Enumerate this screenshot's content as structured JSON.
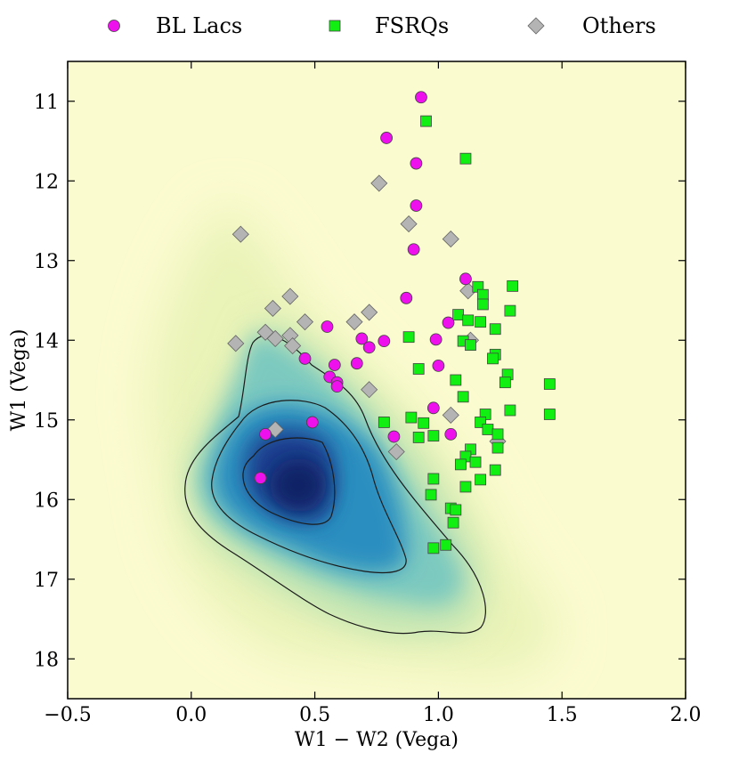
{
  "chart_data": {
    "type": "scatter",
    "xlabel": "W1 − W2 (Vega)",
    "ylabel": "W1 (Vega)",
    "xlim": [
      -0.5,
      2.0
    ],
    "ylim": [
      18.5,
      10.5
    ],
    "y_inverted": true,
    "grid": false,
    "legend_position": "top",
    "xticks": [
      {
        "value": -0.5,
        "label": "−0.5"
      },
      {
        "value": 0.0,
        "label": "0.0"
      },
      {
        "value": 0.5,
        "label": "0.5"
      },
      {
        "value": 1.0,
        "label": "1.0"
      },
      {
        "value": 1.5,
        "label": "1.5"
      },
      {
        "value": 2.0,
        "label": "2.0"
      }
    ],
    "yticks": [
      {
        "value": 11,
        "label": "11"
      },
      {
        "value": 12,
        "label": "12"
      },
      {
        "value": 13,
        "label": "13"
      },
      {
        "value": 14,
        "label": "14"
      },
      {
        "value": 15,
        "label": "15"
      },
      {
        "value": 16,
        "label": "16"
      },
      {
        "value": 17,
        "label": "17"
      },
      {
        "value": 18,
        "label": "18"
      }
    ],
    "background_density": {
      "colormap": "YlGnBu",
      "peak": [
        0.45,
        15.9
      ],
      "description_colors": {
        "low": "#fbfbd0",
        "mid": "#41b6c4",
        "high": "#081d58"
      }
    },
    "series": [
      {
        "name": "BL Lacs",
        "marker": "circle",
        "color": "#ee11ee",
        "points": [
          [
            0.93,
            10.95
          ],
          [
            0.79,
            11.46
          ],
          [
            0.91,
            11.78
          ],
          [
            0.91,
            12.31
          ],
          [
            0.9,
            12.86
          ],
          [
            1.11,
            13.23
          ],
          [
            0.87,
            13.47
          ],
          [
            1.04,
            13.78
          ],
          [
            0.55,
            13.83
          ],
          [
            0.69,
            13.98
          ],
          [
            0.78,
            14.01
          ],
          [
            0.99,
            13.99
          ],
          [
            0.72,
            14.09
          ],
          [
            0.46,
            14.23
          ],
          [
            0.58,
            14.31
          ],
          [
            0.67,
            14.29
          ],
          [
            1.0,
            14.32
          ],
          [
            0.56,
            14.46
          ],
          [
            0.59,
            14.53
          ],
          [
            0.59,
            14.58
          ],
          [
            0.98,
            14.85
          ],
          [
            0.49,
            15.03
          ],
          [
            0.82,
            15.21
          ],
          [
            1.05,
            15.18
          ],
          [
            0.3,
            15.18
          ],
          [
            0.28,
            15.73
          ]
        ]
      },
      {
        "name": "FSRQs",
        "marker": "square",
        "color": "#11ee11",
        "points": [
          [
            0.95,
            11.25
          ],
          [
            1.11,
            11.72
          ],
          [
            1.16,
            13.33
          ],
          [
            1.3,
            13.32
          ],
          [
            1.18,
            13.43
          ],
          [
            1.18,
            13.55
          ],
          [
            1.29,
            13.63
          ],
          [
            1.08,
            13.68
          ],
          [
            1.12,
            13.75
          ],
          [
            1.17,
            13.77
          ],
          [
            1.23,
            13.86
          ],
          [
            0.88,
            13.96
          ],
          [
            1.1,
            14.01
          ],
          [
            1.13,
            14.06
          ],
          [
            1.23,
            14.18
          ],
          [
            1.22,
            14.23
          ],
          [
            0.92,
            14.36
          ],
          [
            1.28,
            14.43
          ],
          [
            1.07,
            14.5
          ],
          [
            1.27,
            14.53
          ],
          [
            1.45,
            14.55
          ],
          [
            1.1,
            14.71
          ],
          [
            1.29,
            14.88
          ],
          [
            1.19,
            14.93
          ],
          [
            1.45,
            14.93
          ],
          [
            0.89,
            14.97
          ],
          [
            0.78,
            15.03
          ],
          [
            0.94,
            15.04
          ],
          [
            1.17,
            15.03
          ],
          [
            1.2,
            15.12
          ],
          [
            1.24,
            15.18
          ],
          [
            0.92,
            15.22
          ],
          [
            0.98,
            15.2
          ],
          [
            1.24,
            15.35
          ],
          [
            1.13,
            15.37
          ],
          [
            1.11,
            15.46
          ],
          [
            1.15,
            15.53
          ],
          [
            1.09,
            15.56
          ],
          [
            1.23,
            15.63
          ],
          [
            0.98,
            15.74
          ],
          [
            1.17,
            15.75
          ],
          [
            1.11,
            15.84
          ],
          [
            0.97,
            15.94
          ],
          [
            1.05,
            16.11
          ],
          [
            1.07,
            16.13
          ],
          [
            1.06,
            16.29
          ],
          [
            1.03,
            16.57
          ],
          [
            0.98,
            16.61
          ]
        ]
      },
      {
        "name": "Others",
        "marker": "diamond",
        "color": "#b4b4b4",
        "points": [
          [
            0.76,
            12.03
          ],
          [
            0.88,
            12.54
          ],
          [
            1.05,
            12.73
          ],
          [
            0.2,
            12.67
          ],
          [
            1.12,
            13.38
          ],
          [
            0.4,
            13.45
          ],
          [
            0.33,
            13.6
          ],
          [
            0.72,
            13.65
          ],
          [
            0.46,
            13.77
          ],
          [
            0.66,
            13.77
          ],
          [
            0.3,
            13.9
          ],
          [
            0.34,
            13.98
          ],
          [
            0.4,
            13.94
          ],
          [
            0.41,
            14.07
          ],
          [
            0.18,
            14.04
          ],
          [
            1.13,
            14.0
          ],
          [
            0.72,
            14.62
          ],
          [
            1.05,
            14.94
          ],
          [
            0.34,
            15.12
          ],
          [
            1.24,
            15.27
          ],
          [
            0.83,
            15.4
          ]
        ]
      }
    ]
  }
}
